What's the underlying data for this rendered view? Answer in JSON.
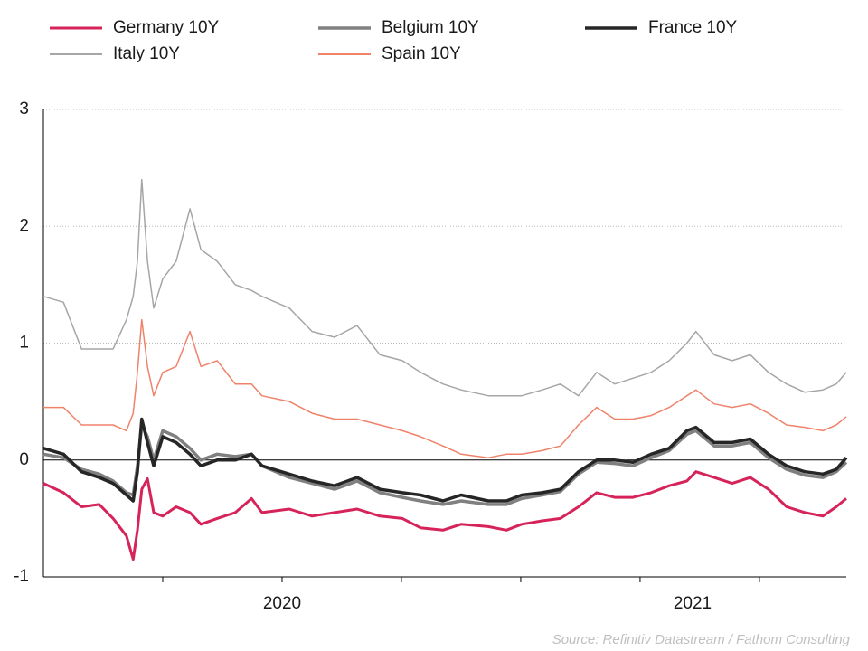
{
  "chart_data": {
    "type": "line",
    "x": [
      2020.0,
      2020.042,
      2020.08,
      2020.117,
      2020.146,
      2020.174,
      2020.188,
      2020.197,
      2020.206,
      2020.218,
      2020.231,
      2020.25,
      2020.278,
      2020.307,
      2020.33,
      2020.364,
      2020.402,
      2020.436,
      2020.458,
      2020.515,
      2020.563,
      2020.61,
      2020.657,
      2020.705,
      2020.752,
      2020.79,
      2020.837,
      2020.875,
      2020.932,
      2020.97,
      2021.002,
      2021.045,
      2021.083,
      2021.121,
      2021.159,
      2021.197,
      2021.235,
      2021.273,
      2021.311,
      2021.348,
      2021.367,
      2021.405,
      2021.443,
      2021.481,
      2021.519,
      2021.557,
      2021.595,
      2021.633,
      2021.661,
      2021.682
    ],
    "series": [
      {
        "name": "Italy 10Y",
        "color": "#a6a6a6",
        "values": [
          1.4,
          1.35,
          0.95,
          0.95,
          0.95,
          1.2,
          1.4,
          1.7,
          2.4,
          1.7,
          1.3,
          1.55,
          1.7,
          2.15,
          1.8,
          1.7,
          1.5,
          1.45,
          1.4,
          1.3,
          1.1,
          1.05,
          1.15,
          0.9,
          0.85,
          0.75,
          0.65,
          0.6,
          0.55,
          0.55,
          0.55,
          0.6,
          0.65,
          0.55,
          0.75,
          0.65,
          0.7,
          0.75,
          0.85,
          1.0,
          1.1,
          0.9,
          0.85,
          0.9,
          0.75,
          0.65,
          0.58,
          0.6,
          0.65,
          0.75
        ]
      },
      {
        "name": "Spain 10Y",
        "color": "#f0826a",
        "values": [
          0.45,
          0.45,
          0.3,
          0.3,
          0.3,
          0.25,
          0.4,
          0.75,
          1.2,
          0.8,
          0.55,
          0.75,
          0.8,
          1.1,
          0.8,
          0.85,
          0.65,
          0.65,
          0.55,
          0.5,
          0.4,
          0.35,
          0.35,
          0.3,
          0.25,
          0.2,
          0.12,
          0.05,
          0.02,
          0.05,
          0.05,
          0.08,
          0.12,
          0.3,
          0.45,
          0.35,
          0.35,
          0.38,
          0.45,
          0.55,
          0.6,
          0.48,
          0.45,
          0.48,
          0.4,
          0.3,
          0.28,
          0.25,
          0.3,
          0.37
        ]
      },
      {
        "name": "Belgium 10Y",
        "color": "#808080",
        "values": [
          0.05,
          0.02,
          -0.08,
          -0.12,
          -0.18,
          -0.28,
          -0.3,
          -0.05,
          0.3,
          0.2,
          0.0,
          0.25,
          0.2,
          0.1,
          0.0,
          0.05,
          0.03,
          0.05,
          -0.05,
          -0.15,
          -0.2,
          -0.25,
          -0.18,
          -0.28,
          -0.32,
          -0.35,
          -0.38,
          -0.35,
          -0.38,
          -0.38,
          -0.33,
          -0.3,
          -0.27,
          -0.12,
          -0.02,
          -0.03,
          -0.05,
          0.02,
          0.08,
          0.22,
          0.25,
          0.12,
          0.12,
          0.15,
          0.02,
          -0.08,
          -0.13,
          -0.15,
          -0.1,
          -0.02
        ]
      },
      {
        "name": "France 10Y",
        "color": "#262626",
        "values": [
          0.1,
          0.05,
          -0.1,
          -0.15,
          -0.2,
          -0.3,
          -0.35,
          -0.1,
          0.35,
          0.15,
          -0.05,
          0.2,
          0.15,
          0.05,
          -0.05,
          0.0,
          0.0,
          0.05,
          -0.05,
          -0.12,
          -0.18,
          -0.22,
          -0.15,
          -0.25,
          -0.28,
          -0.3,
          -0.35,
          -0.3,
          -0.35,
          -0.35,
          -0.3,
          -0.28,
          -0.25,
          -0.1,
          0.0,
          0.0,
          -0.02,
          0.05,
          0.1,
          0.25,
          0.28,
          0.15,
          0.15,
          0.18,
          0.05,
          -0.05,
          -0.1,
          -0.12,
          -0.08,
          0.02
        ]
      },
      {
        "name": "Germany 10Y",
        "color": "#d6235a",
        "values": [
          -0.2,
          -0.28,
          -0.4,
          -0.38,
          -0.5,
          -0.65,
          -0.85,
          -0.6,
          -0.25,
          -0.16,
          -0.45,
          -0.48,
          -0.4,
          -0.45,
          -0.55,
          -0.5,
          -0.45,
          -0.33,
          -0.45,
          -0.42,
          -0.48,
          -0.45,
          -0.42,
          -0.48,
          -0.5,
          -0.58,
          -0.6,
          -0.55,
          -0.57,
          -0.6,
          -0.55,
          -0.52,
          -0.5,
          -0.4,
          -0.28,
          -0.32,
          -0.32,
          -0.28,
          -0.22,
          -0.18,
          -0.1,
          -0.15,
          -0.2,
          -0.15,
          -0.25,
          -0.4,
          -0.45,
          -0.48,
          -0.4,
          -0.33
        ]
      }
    ],
    "xlim": [
      2020,
      2021.682
    ],
    "xticks": [
      {
        "value": 2020.5,
        "label": "2020"
      },
      {
        "value": 2021.36,
        "label": "2021"
      }
    ],
    "xminor": [
      2020.25,
      2020.5,
      2020.75,
      2021,
      2021.25,
      2021.5
    ],
    "ylim": [
      -1,
      3
    ],
    "yticks": [
      -1,
      0,
      1,
      2,
      3
    ],
    "grid": true,
    "source": "Source: Refinitiv Datastream / Fathom Consulting"
  }
}
